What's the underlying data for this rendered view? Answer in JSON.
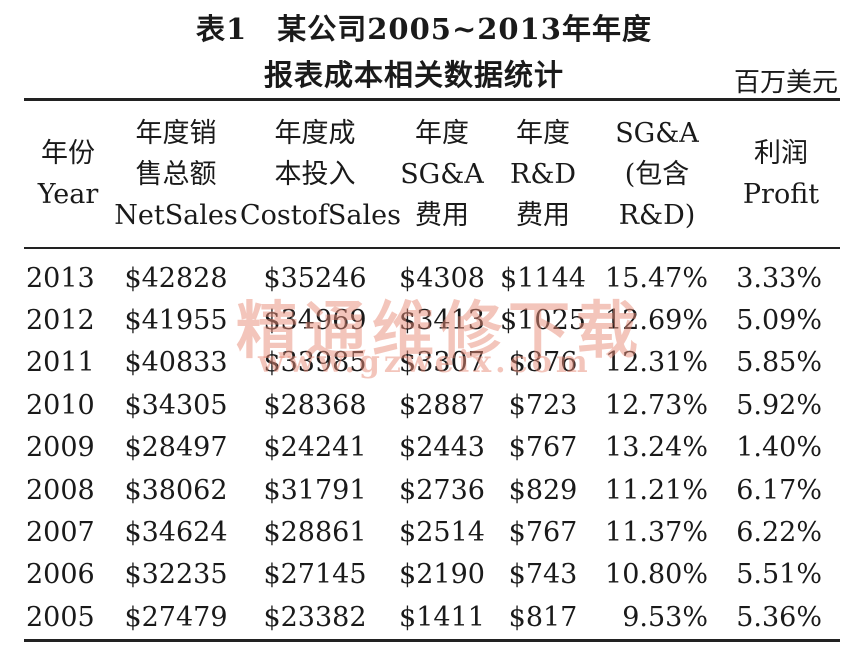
{
  "title": {
    "line1": "表1　某公司2005~2013年年度",
    "line2": "报表成本相关数据统计"
  },
  "unit": "百万美元",
  "watermark": {
    "text": "精通维修下载",
    "url": "www.gzweix.com"
  },
  "table": {
    "headers": [
      "年份\nYear",
      "年度销\n售总额\nNetSales",
      "年度成\n本投入\nCostofSales",
      "年度\nSG&A\n费用",
      "年度\nR&D\n费用",
      "SG&A\n(包含\nR&D)",
      "利润\nProfit"
    ],
    "rows": [
      [
        "2013",
        "$42828",
        "$35246",
        "$4308",
        "$1144",
        "15.47%",
        "3.33%"
      ],
      [
        "2012",
        "$41955",
        "$34969",
        "$3413",
        "$1025",
        "12.69%",
        "5.09%"
      ],
      [
        "2011",
        "$40833",
        "$33985",
        "$3307",
        "$876",
        "12.31%",
        "5.85%"
      ],
      [
        "2010",
        "$34305",
        "$28368",
        "$2887",
        "$723",
        "12.73%",
        "5.92%"
      ],
      [
        "2009",
        "$28497",
        "$24241",
        "$2443",
        "$767",
        "13.24%",
        "1.40%"
      ],
      [
        "2008",
        "$38062",
        "$31791",
        "$2736",
        "$829",
        "11.21%",
        "6.17%"
      ],
      [
        "2007",
        "$34624",
        "$28861",
        "$2514",
        "$767",
        "11.37%",
        "6.22%"
      ],
      [
        "2006",
        "$32235",
        "$27145",
        "$2190",
        "$743",
        "10.80%",
        "5.51%"
      ],
      [
        "2005",
        "$27479",
        "$23382",
        "$1411",
        "$817",
        "9.53%",
        "5.36%"
      ]
    ]
  }
}
